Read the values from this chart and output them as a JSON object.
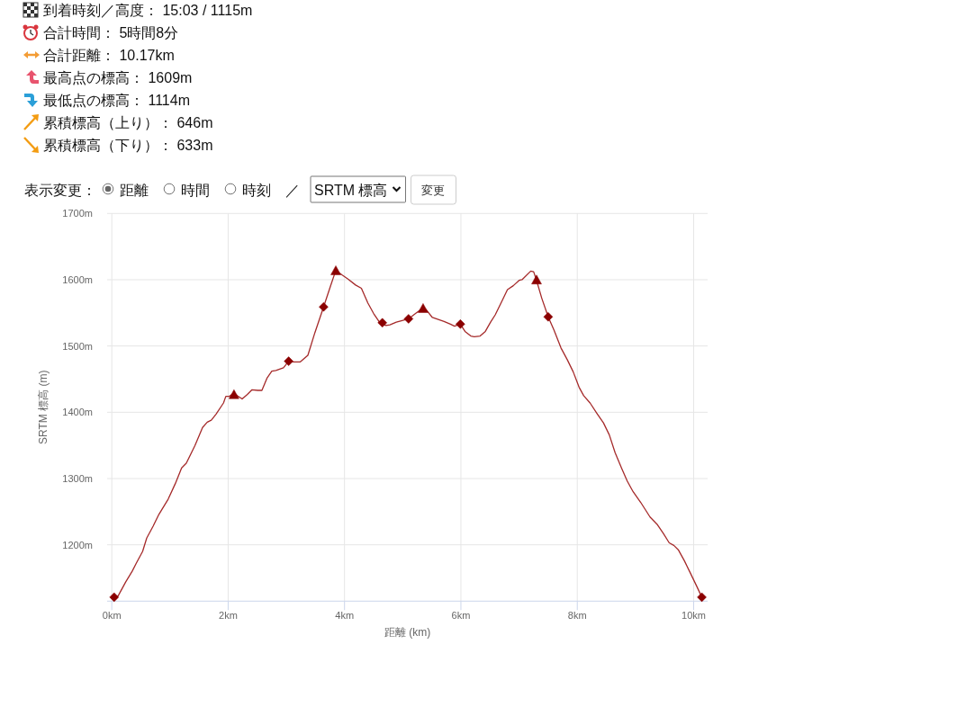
{
  "chart_data": {
    "type": "line",
    "xlabel": "距離 (km)",
    "ylabel": "SRTM 標高 (m)",
    "annotations": [
      "到着時刻／高度： 15:03 / 1115m",
      "合計時間： 5時間8分",
      "合計距離： 10.17km",
      "最高点の標高： 1609m",
      "最低点の標高： 1114m",
      "累積標高（上り）： 646m",
      "累積標高（下り）： 633m",
      "表示変更：",
      "距離",
      "時間",
      "時刻",
      "／",
      "SRTM 標高",
      "変更"
    ],
    "xlim": [
      -0.08,
      10.24
    ],
    "ylim": [
      1115,
      1700
    ],
    "xticks": [
      {
        "value": 0,
        "label": "0km"
      },
      {
        "value": 2,
        "label": "2km"
      },
      {
        "value": 4,
        "label": "4km"
      },
      {
        "value": 6,
        "label": "6km"
      },
      {
        "value": 8,
        "label": "8km"
      },
      {
        "value": 10,
        "label": "10km"
      }
    ],
    "yticks": [
      {
        "value": 1200,
        "label": "1200m"
      },
      {
        "value": 1300,
        "label": "1300m"
      },
      {
        "value": 1400,
        "label": "1400m"
      },
      {
        "value": 1500,
        "label": "1500m"
      },
      {
        "value": 1600,
        "label": "1600m"
      },
      {
        "value": 1700,
        "label": "1700m"
      }
    ],
    "grid": true,
    "series": [
      {
        "color": "#a52a2a",
        "marker": "none",
        "line_style": "solid",
        "x": [
          0.04,
          0.11,
          0.24,
          0.35,
          0.42,
          0.53,
          0.6,
          0.71,
          0.81,
          0.97,
          1.09,
          1.2,
          1.28,
          1.43,
          1.56,
          1.64,
          1.71,
          1.79,
          1.92,
          1.96,
          2.02,
          2.1,
          2.16,
          2.24,
          2.33,
          2.41,
          2.51,
          2.58,
          2.67,
          2.75,
          2.82,
          2.95,
          3.04,
          3.13,
          3.24,
          3.37,
          3.49,
          3.64,
          3.75,
          3.85,
          3.96,
          4.06,
          4.19,
          4.29,
          4.4,
          4.5,
          4.6,
          4.71,
          4.78,
          4.89,
          5.02,
          5.1,
          5.22,
          5.33,
          5.4,
          5.51,
          5.61,
          5.71,
          5.82,
          5.89,
          5.99,
          6.07,
          6.17,
          6.23,
          6.33,
          6.42,
          6.51,
          6.59,
          6.69,
          6.8,
          6.9,
          7.0,
          7.05,
          7.2,
          7.25,
          7.3,
          7.39,
          7.5,
          7.6,
          7.72,
          7.83,
          7.93,
          8.03,
          8.11,
          8.22,
          8.34,
          8.45,
          8.55,
          8.65,
          8.76,
          8.86,
          8.96,
          9.09,
          9.25,
          9.38,
          9.48,
          9.58,
          9.66,
          9.74,
          9.84,
          9.94,
          10.05,
          10.14
        ],
        "values": [
          1121,
          1123,
          1144,
          1160,
          1172,
          1190,
          1210,
          1228,
          1246,
          1269,
          1292,
          1316,
          1323,
          1350,
          1377,
          1385,
          1388,
          1397,
          1414,
          1424,
          1424,
          1429,
          1425,
          1420,
          1427,
          1434,
          1433,
          1433,
          1452,
          1462,
          1463,
          1467,
          1477,
          1476,
          1476,
          1486,
          1520,
          1559,
          1588,
          1614,
          1607,
          1601,
          1592,
          1587,
          1565,
          1549,
          1536,
          1531,
          1532,
          1536,
          1539,
          1541,
          1549,
          1556,
          1555,
          1543,
          1540,
          1537,
          1533,
          1530,
          1533,
          1522,
          1515,
          1514,
          1515,
          1522,
          1536,
          1547,
          1565,
          1585,
          1591,
          1599,
          1600,
          1613,
          1612,
          1599,
          1572,
          1544,
          1524,
          1497,
          1479,
          1461,
          1438,
          1425,
          1414,
          1398,
          1384,
          1366,
          1339,
          1316,
          1296,
          1280,
          1264,
          1242,
          1230,
          1217,
          1203,
          1199,
          1192,
          1176,
          1158,
          1138,
          1121
        ]
      },
      {
        "type": "scatter",
        "color": "#8b0000",
        "marker": "diamond",
        "x": [
          0.04,
          3.04,
          3.64,
          4.65,
          5.1,
          5.99,
          7.5,
          10.14
        ],
        "values": [
          1121,
          1477,
          1559,
          1535,
          1541,
          1533,
          1544,
          1121
        ]
      },
      {
        "type": "scatter",
        "color": "#8b0000",
        "marker": "triangle",
        "x": [
          2.1,
          3.85,
          5.35,
          7.3
        ],
        "values": [
          1426,
          1613,
          1556,
          1599
        ]
      }
    ]
  }
}
